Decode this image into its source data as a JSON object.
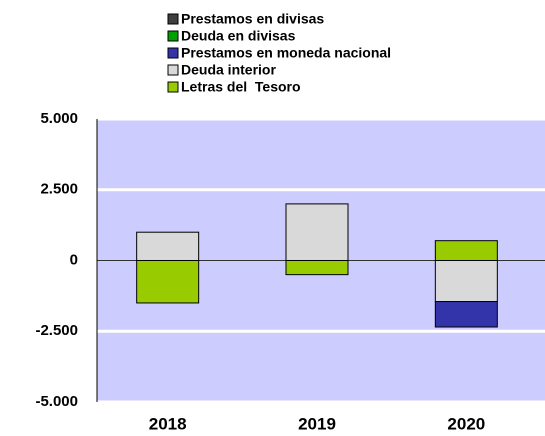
{
  "chart_data": {
    "type": "stacked_bar",
    "categories": [
      "2018",
      "2019",
      "2020"
    ],
    "series": [
      {
        "name": "Prestamos en divisas",
        "color": "#404040",
        "values": [
          0,
          0,
          0
        ]
      },
      {
        "name": "Deuda en divisas",
        "color": "#00a000",
        "values": [
          0,
          0,
          0
        ]
      },
      {
        "name": "Prestamos en moneda nacional",
        "color": "#3333aa",
        "values": [
          0,
          0,
          -900
        ]
      },
      {
        "name": "Deuda interior",
        "color": "#d9d9d9",
        "values": [
          1000,
          2000,
          -1450
        ]
      },
      {
        "name": "Letras del  Tesoro",
        "color": "#99cc00",
        "values": [
          -1500,
          -500,
          700
        ]
      }
    ],
    "ylim": [
      -5000,
      5000
    ],
    "yticks": [
      {
        "value": -5000,
        "label": "-5.000"
      },
      {
        "value": -2500,
        "label": "-2.500"
      },
      0,
      {
        "value": 2500,
        "label": "2.500"
      },
      {
        "value": 5000,
        "label": "5.000"
      }
    ],
    "grid": true,
    "legend": "top",
    "background": "#ccccff"
  }
}
